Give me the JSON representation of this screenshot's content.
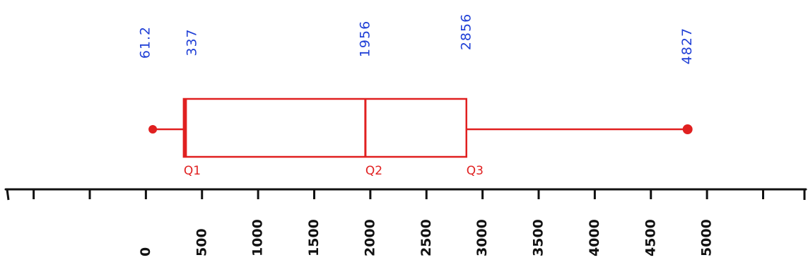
{
  "chart_data": {
    "type": "boxplot",
    "title": "",
    "xlabel": "",
    "ylabel": "",
    "xlim": [
      -1300,
      5900
    ],
    "ticks": [
      0,
      500,
      1000,
      1500,
      2000,
      2500,
      3000,
      3500,
      4000,
      4500,
      5000
    ],
    "tick_labels": [
      "0",
      "500",
      "1000",
      "1500",
      "2000",
      "2500",
      "3000",
      "3500",
      "4000",
      "4500",
      "5000"
    ],
    "box": {
      "min": 61.2,
      "q1": 337,
      "median": 1956,
      "q3": 2856,
      "max": 4827
    },
    "value_labels": [
      {
        "text": "61.2",
        "value": 61.2
      },
      {
        "text": "337",
        "value": 337
      },
      {
        "text": "1956",
        "value": 1956
      },
      {
        "text": "2856",
        "value": 2856
      },
      {
        "text": "4827",
        "value": 4827
      }
    ],
    "quartile_labels": [
      {
        "text": "Q1",
        "value": 337
      },
      {
        "text": "Q2",
        "value": 1956
      },
      {
        "text": "Q3",
        "value": 2856
      }
    ],
    "colors": {
      "box": "#e02020",
      "labels": "#1f3fd6",
      "axis": "#111111"
    }
  }
}
